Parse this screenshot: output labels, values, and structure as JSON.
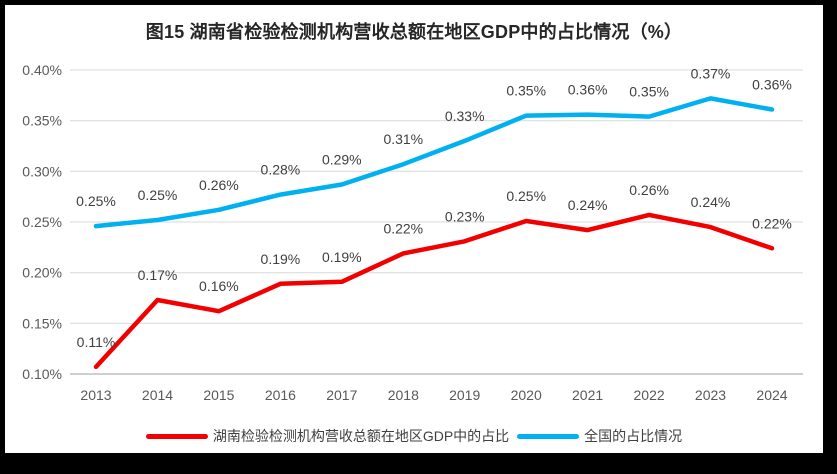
{
  "chart_data": {
    "type": "line",
    "title": "图15 湖南省检验检测机构营收总额在地区GDP中的占比情况（%）",
    "categories": [
      "2013",
      "2014",
      "2015",
      "2016",
      "2017",
      "2018",
      "2019",
      "2020",
      "2021",
      "2022",
      "2023",
      "2024"
    ],
    "series": [
      {
        "id": "hunan",
        "name": "湖南检验检测机构营收总额在地区GDP中的占比",
        "color": "#f20000",
        "values": [
          0.11,
          0.17,
          0.16,
          0.19,
          0.19,
          0.22,
          0.23,
          0.25,
          0.24,
          0.26,
          0.24,
          0.22
        ],
        "labels": [
          "0.11%",
          "0.17%",
          "0.16%",
          "0.19%",
          "0.19%",
          "0.22%",
          "0.23%",
          "0.25%",
          "0.24%",
          "0.26%",
          "0.24%",
          "0.22%"
        ],
        "plot_values": [
          0.107,
          0.173,
          0.162,
          0.189,
          0.191,
          0.219,
          0.231,
          0.251,
          0.242,
          0.257,
          0.245,
          0.224
        ]
      },
      {
        "id": "national",
        "name": "全国的占比情况",
        "color": "#00b0f0",
        "values": [
          0.25,
          0.25,
          0.26,
          0.28,
          0.29,
          0.31,
          0.33,
          0.35,
          0.36,
          0.35,
          0.37,
          0.36
        ],
        "labels": [
          "0.25%",
          "0.25%",
          "0.26%",
          "0.28%",
          "0.29%",
          "0.31%",
          "0.33%",
          "0.35%",
          "0.36%",
          "0.35%",
          "0.37%",
          "0.36%"
        ],
        "plot_values": [
          0.246,
          0.252,
          0.262,
          0.277,
          0.287,
          0.307,
          0.33,
          0.355,
          0.356,
          0.354,
          0.372,
          0.361
        ]
      }
    ],
    "ylim": [
      0.1,
      0.4
    ],
    "yticks": [
      {
        "value": 0.1,
        "label": "0.10%"
      },
      {
        "value": 0.15,
        "label": "0.15%"
      },
      {
        "value": 0.2,
        "label": "0.20%"
      },
      {
        "value": 0.25,
        "label": "0.25%"
      },
      {
        "value": 0.3,
        "label": "0.30%"
      },
      {
        "value": 0.35,
        "label": "0.35%"
      },
      {
        "value": 0.4,
        "label": "0.40%"
      }
    ],
    "grid": true,
    "legend_position": "bottom"
  }
}
